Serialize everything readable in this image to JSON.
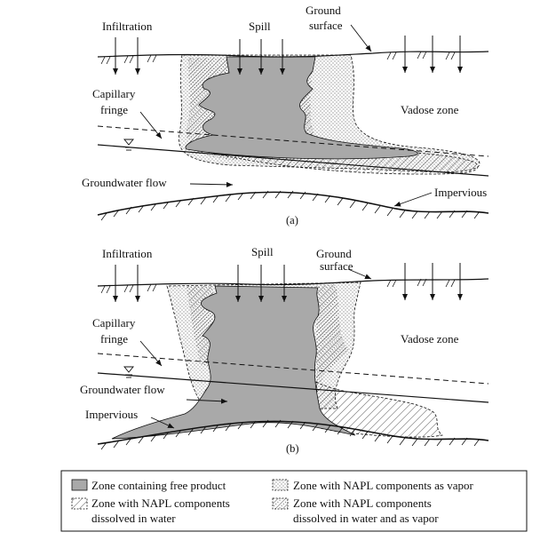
{
  "panel_a": {
    "infiltration": "Infiltration",
    "spill": "Spill",
    "ground_line1": "Ground",
    "ground_line2": "surface",
    "capillary_line1": "Capillary",
    "capillary_line2": "fringe",
    "vadose": "Vadose zone",
    "groundwater_flow": "Groundwater flow",
    "impervious": "Impervious",
    "caption": "(a)"
  },
  "panel_b": {
    "infiltration": "Infiltration",
    "spill": "Spill",
    "ground_line1": "Ground",
    "ground_line2": "surface",
    "capillary_line1": "Capillary",
    "capillary_line2": "fringe",
    "vadose": "Vadose zone",
    "groundwater_flow": "Groundwater flow",
    "impervious": "Impervious",
    "caption": "(b)"
  },
  "legend": {
    "free_product": "Zone containing free product",
    "dissolved_line1": "Zone with NAPL components",
    "dissolved_line2": "dissolved in water",
    "vapor": "Zone with NAPL components as vapor",
    "both_line1": "Zone with NAPL components",
    "both_line2": "dissolved in water and as vapor"
  },
  "colors": {
    "free_product": "#a9a9a9",
    "line": "#111111"
  }
}
